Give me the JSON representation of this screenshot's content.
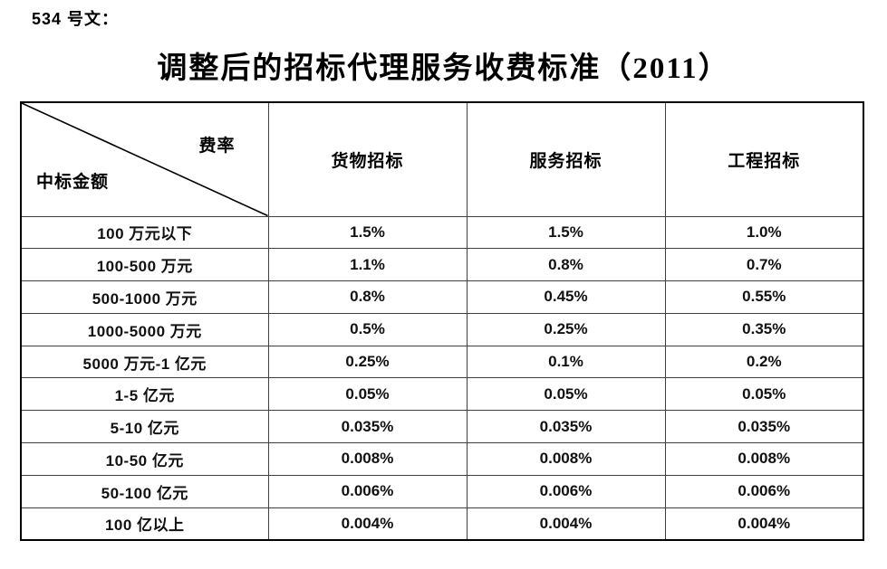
{
  "document": {
    "doc_label": "534 号文：",
    "title": "调整后的招标代理服务收费标准（2011）",
    "table": {
      "corner_top_right": "费率",
      "corner_bottom_left": "中标金额",
      "columns": [
        "货物招标",
        "服务招标",
        "工程招标"
      ],
      "rows": [
        {
          "amount": "100 万元以下",
          "values": [
            "1.5%",
            "1.5%",
            "1.0%"
          ]
        },
        {
          "amount": "100-500 万元",
          "values": [
            "1.1%",
            "0.8%",
            "0.7%"
          ]
        },
        {
          "amount": "500-1000 万元",
          "values": [
            "0.8%",
            "0.45%",
            "0.55%"
          ]
        },
        {
          "amount": "1000-5000 万元",
          "values": [
            "0.5%",
            "0.25%",
            "0.35%"
          ]
        },
        {
          "amount": "5000 万元-1 亿元",
          "values": [
            "0.25%",
            "0.1%",
            "0.2%"
          ]
        },
        {
          "amount": "1-5 亿元",
          "values": [
            "0.05%",
            "0.05%",
            "0.05%"
          ]
        },
        {
          "amount": "5-10 亿元",
          "values": [
            "0.035%",
            "0.035%",
            "0.035%"
          ]
        },
        {
          "amount": "10-50 亿元",
          "values": [
            "0.008%",
            "0.008%",
            "0.008%"
          ]
        },
        {
          "amount": "50-100 亿元",
          "values": [
            "0.006%",
            "0.006%",
            "0.006%"
          ]
        },
        {
          "amount": "100 亿以上",
          "values": [
            "0.004%",
            "0.004%",
            "0.004%"
          ]
        }
      ]
    }
  }
}
